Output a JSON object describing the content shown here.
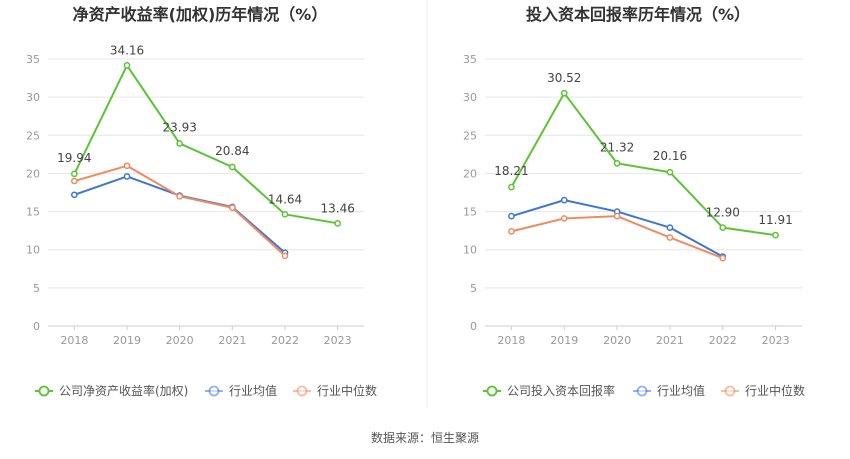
{
  "source_label": "数据来源：恒生聚源",
  "colors": {
    "company": "#5ac435",
    "avg": "#3e76d8",
    "median": "#f08a5d"
  },
  "chart_data": [
    {
      "type": "line",
      "title": "净资产收益率(加权)历年情况（%）",
      "categories": [
        "2018",
        "2019",
        "2020",
        "2021",
        "2022",
        "2023"
      ],
      "ylim": [
        0,
        35
      ],
      "yticks": [
        0,
        5,
        10,
        15,
        20,
        25,
        30,
        35
      ],
      "series": [
        {
          "name": "公司净资产收益率(加权)",
          "values": [
            19.94,
            34.16,
            23.93,
            20.84,
            14.64,
            13.46
          ],
          "labels": [
            "19.94",
            "34.16",
            "23.93",
            "20.84",
            "14.64",
            "13.46"
          ]
        },
        {
          "name": "行业均值",
          "values": [
            17.2,
            19.6,
            17.1,
            15.6,
            9.6,
            null
          ]
        },
        {
          "name": "行业中位数",
          "values": [
            19.0,
            21.0,
            17.0,
            15.5,
            9.2,
            null
          ]
        }
      ]
    },
    {
      "type": "line",
      "title": "投入资本回报率历年情况（%）",
      "categories": [
        "2018",
        "2019",
        "2020",
        "2021",
        "2022",
        "2023"
      ],
      "ylim": [
        0,
        35
      ],
      "yticks": [
        0,
        5,
        10,
        15,
        20,
        25,
        30,
        35
      ],
      "series": [
        {
          "name": "公司投入资本回报率",
          "values": [
            18.21,
            30.52,
            21.32,
            20.16,
            12.9,
            11.91
          ],
          "labels": [
            "18.21",
            "30.52",
            "21.32",
            "20.16",
            "12.90",
            "11.91"
          ]
        },
        {
          "name": "行业均值",
          "values": [
            14.4,
            16.5,
            15.0,
            12.9,
            9.1,
            null
          ]
        },
        {
          "name": "行业中位数",
          "values": [
            12.4,
            14.1,
            14.4,
            11.6,
            8.9,
            null
          ]
        }
      ]
    }
  ]
}
